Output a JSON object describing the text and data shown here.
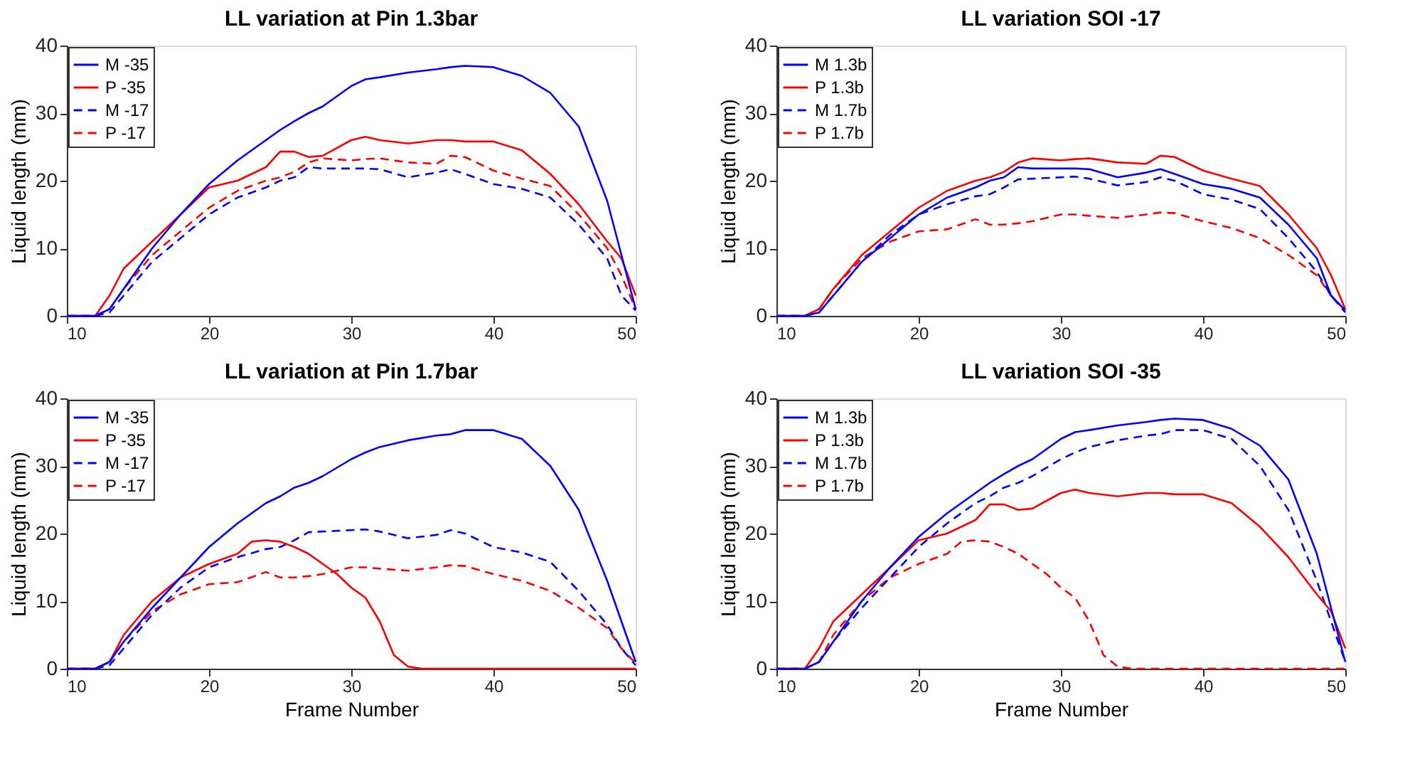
{
  "chart_data": [
    {
      "type": "line",
      "title": "LL variation at Pin 1.3bar",
      "ylabel": "Liquid length (mm)",
      "xlim": [
        10,
        50
      ],
      "xticks": [
        10,
        20,
        30,
        40,
        50
      ],
      "ylim": [
        0,
        40
      ],
      "yticks": [
        0,
        10,
        20,
        30,
        40
      ],
      "legend": "top left",
      "x": [
        10,
        12,
        13,
        14,
        16,
        18,
        20,
        22,
        24,
        25,
        26,
        27,
        28,
        30,
        31,
        32,
        34,
        36,
        37,
        38,
        40,
        42,
        44,
        46,
        48,
        49,
        50
      ],
      "series": [
        {
          "name": "M -35",
          "color": "#0000ff",
          "line_style": "solid",
          "values": [
            0,
            0,
            1,
            4,
            10,
            15,
            19.5,
            23,
            26,
            27.5,
            28.8,
            30,
            31,
            34,
            35,
            35.3,
            36,
            36.5,
            36.8,
            37,
            36.8,
            35.5,
            33,
            28,
            17,
            9,
            1
          ]
        },
        {
          "name": "P -35",
          "color": "#ff0000",
          "line_style": "solid",
          "values": [
            0,
            0,
            3,
            7,
            11,
            15,
            19,
            20,
            22,
            24.3,
            24.3,
            23.5,
            23.7,
            26,
            26.5,
            26,
            25.5,
            26,
            26,
            25.8,
            25.8,
            24.5,
            21,
            16.5,
            11,
            8.5,
            3
          ]
        },
        {
          "name": "M -17",
          "color": "#0000ff",
          "line_style": "dashed",
          "values": [
            0,
            0,
            0.5,
            3,
            8,
            11.5,
            15,
            17.5,
            19,
            20,
            20.5,
            22,
            21.8,
            21.8,
            21.8,
            21.7,
            20.5,
            21.2,
            21.7,
            21,
            19.5,
            18.8,
            17.5,
            13.5,
            8.5,
            3,
            0.8
          ]
        },
        {
          "name": "P -17",
          "color": "#ff0000",
          "line_style": "dashed",
          "values": [
            0,
            0,
            1,
            4,
            9,
            12.5,
            16,
            18.5,
            20,
            20.5,
            21.3,
            22.7,
            23.3,
            23,
            23.2,
            23.3,
            22.7,
            22.5,
            23.7,
            23.5,
            21.5,
            20.3,
            19.2,
            15,
            10,
            6,
            1
          ]
        }
      ]
    },
    {
      "type": "line",
      "title": "LL variation SOI -17",
      "ylabel": "Liquid length (mm)",
      "xlim": [
        10,
        50
      ],
      "xticks": [
        10,
        20,
        30,
        40,
        50
      ],
      "ylim": [
        0,
        40
      ],
      "yticks": [
        0,
        10,
        20,
        30,
        40
      ],
      "legend": "top left",
      "x": [
        10,
        12,
        13,
        14,
        16,
        18,
        20,
        22,
        24,
        25,
        26,
        27,
        28,
        30,
        31,
        32,
        34,
        36,
        37,
        38,
        40,
        42,
        44,
        46,
        48,
        49,
        50
      ],
      "series": [
        {
          "name": "M 1.3b",
          "color": "#0000ff",
          "line_style": "solid",
          "values": [
            0,
            0,
            0.5,
            3,
            8,
            11.5,
            15,
            17.5,
            19,
            20,
            20.5,
            22,
            21.8,
            21.8,
            21.8,
            21.7,
            20.5,
            21.2,
            21.7,
            21,
            19.5,
            18.8,
            17.5,
            13.5,
            8.5,
            3,
            0.8
          ]
        },
        {
          "name": "P 1.3b",
          "color": "#ff0000",
          "line_style": "solid",
          "values": [
            0,
            0,
            1,
            4,
            9,
            12.5,
            16,
            18.5,
            20,
            20.5,
            21.3,
            22.7,
            23.3,
            23,
            23.2,
            23.3,
            22.7,
            22.5,
            23.7,
            23.5,
            21.5,
            20.3,
            19.2,
            15,
            10,
            6,
            1
          ]
        },
        {
          "name": "M 1.7b",
          "color": "#0000ff",
          "line_style": "dashed",
          "values": [
            0,
            0,
            0.5,
            3,
            8,
            12,
            15,
            16.5,
            17.7,
            18,
            19,
            20.2,
            20.3,
            20.5,
            20.6,
            20.3,
            19.3,
            19.8,
            20.5,
            20,
            18,
            17.2,
            15.8,
            11.5,
            6.5,
            3,
            0.5
          ]
        },
        {
          "name": "P 1.7b",
          "color": "#ff0000",
          "line_style": "dashed",
          "values": [
            0,
            0,
            1,
            4,
            8.5,
            11,
            12.5,
            12.8,
            14.3,
            13.5,
            13.5,
            13.7,
            14,
            15,
            15,
            14.8,
            14.5,
            15,
            15.3,
            15.2,
            14,
            13,
            11.5,
            9,
            6,
            3,
            0.8
          ]
        }
      ]
    },
    {
      "type": "line",
      "title": "LL variation at Pin 1.7bar",
      "xlabel": "Frame Number",
      "ylabel": "Liquid length (mm)",
      "xlim": [
        10,
        50
      ],
      "xticks": [
        10,
        20,
        30,
        40,
        50
      ],
      "ylim": [
        0,
        40
      ],
      "yticks": [
        0,
        10,
        20,
        30,
        40
      ],
      "legend": "top left",
      "x": [
        10,
        12,
        13,
        14,
        16,
        18,
        20,
        22,
        24,
        25,
        26,
        27,
        28,
        30,
        31,
        32,
        34,
        36,
        37,
        38,
        40,
        42,
        44,
        46,
        48,
        49,
        50
      ],
      "series": [
        {
          "name": "M -35",
          "color": "#0000ff",
          "line_style": "solid",
          "values": [
            0,
            0,
            1,
            4,
            9,
            13.5,
            18,
            21.5,
            24.5,
            25.5,
            26.8,
            27.5,
            28.5,
            31,
            32,
            32.8,
            33.8,
            34.5,
            34.7,
            35.3,
            35.3,
            34,
            30,
            23.5,
            13,
            7,
            1
          ]
        },
        {
          "name": "P -35",
          "color": "#ff0000",
          "line_style": "solid",
          "x": [
            10,
            12,
            13,
            14,
            16,
            18,
            20,
            22,
            23,
            24,
            25,
            26,
            27,
            28,
            29,
            30,
            31,
            32,
            33,
            34,
            35,
            40,
            45,
            50
          ],
          "values": [
            0,
            0,
            1,
            5,
            10,
            13.5,
            15.5,
            17,
            18.8,
            19,
            18.8,
            18,
            17,
            15.5,
            14,
            12,
            10.5,
            7,
            2,
            0.3,
            0,
            0,
            0,
            0
          ]
        },
        {
          "name": "M -17",
          "color": "#0000ff",
          "line_style": "dashed",
          "values": [
            0,
            0,
            0.5,
            3,
            8,
            12,
            15,
            16.5,
            17.7,
            18,
            19,
            20.2,
            20.3,
            20.5,
            20.6,
            20.3,
            19.3,
            19.8,
            20.5,
            20,
            18,
            17.2,
            15.8,
            11.5,
            6.5,
            3,
            0.5
          ]
        },
        {
          "name": "P -17",
          "color": "#ff0000",
          "line_style": "dashed",
          "values": [
            0,
            0,
            1,
            4,
            8.5,
            11,
            12.5,
            12.8,
            14.3,
            13.5,
            13.5,
            13.7,
            14,
            15,
            15,
            14.8,
            14.5,
            15,
            15.3,
            15.2,
            14,
            13,
            11.5,
            9,
            6,
            3,
            0.8
          ]
        }
      ]
    },
    {
      "type": "line",
      "title": "LL variation SOI -35",
      "xlabel": "Frame Number",
      "ylabel": "Liquid length (mm)",
      "xlim": [
        10,
        50
      ],
      "xticks": [
        10,
        20,
        30,
        40,
        50
      ],
      "ylim": [
        0,
        40
      ],
      "yticks": [
        0,
        10,
        20,
        30,
        40
      ],
      "legend": "top left",
      "x": [
        10,
        12,
        13,
        14,
        16,
        18,
        20,
        22,
        24,
        25,
        26,
        27,
        28,
        30,
        31,
        32,
        34,
        36,
        37,
        38,
        40,
        42,
        44,
        46,
        48,
        49,
        50
      ],
      "series": [
        {
          "name": "M 1.3b",
          "color": "#0000ff",
          "line_style": "solid",
          "values": [
            0,
            0,
            1,
            4,
            10,
            15,
            19.5,
            23,
            26,
            27.5,
            28.8,
            30,
            31,
            34,
            35,
            35.3,
            36,
            36.5,
            36.8,
            37,
            36.8,
            35.5,
            33,
            28,
            17,
            9,
            1
          ]
        },
        {
          "name": "P 1.3b",
          "color": "#ff0000",
          "line_style": "solid",
          "values": [
            0,
            0,
            3,
            7,
            11,
            15,
            19,
            20,
            22,
            24.3,
            24.3,
            23.5,
            23.7,
            26,
            26.5,
            26,
            25.5,
            26,
            26,
            25.8,
            25.8,
            24.5,
            21,
            16.5,
            11,
            8.5,
            3
          ]
        },
        {
          "name": "M 1.7b",
          "color": "#0000ff",
          "line_style": "dashed",
          "values": [
            0,
            0,
            1,
            4,
            9,
            13.5,
            18,
            21.5,
            24.5,
            25.5,
            26.8,
            27.5,
            28.5,
            31,
            32,
            32.8,
            33.8,
            34.5,
            34.7,
            35.3,
            35.3,
            34,
            30,
            23.5,
            13,
            7,
            1
          ]
        },
        {
          "name": "P 1.7b",
          "color": "#ff0000",
          "line_style": "dashed",
          "x": [
            10,
            12,
            13,
            14,
            16,
            18,
            20,
            22,
            23,
            24,
            25,
            26,
            27,
            28,
            29,
            30,
            31,
            32,
            33,
            34,
            35,
            40,
            45,
            50
          ],
          "values": [
            0,
            0,
            1,
            5,
            10,
            13.5,
            15.5,
            17,
            18.8,
            19,
            18.8,
            18,
            17,
            15.5,
            14,
            12,
            10.5,
            7,
            2,
            0.3,
            0,
            0,
            0,
            0
          ]
        }
      ]
    }
  ]
}
